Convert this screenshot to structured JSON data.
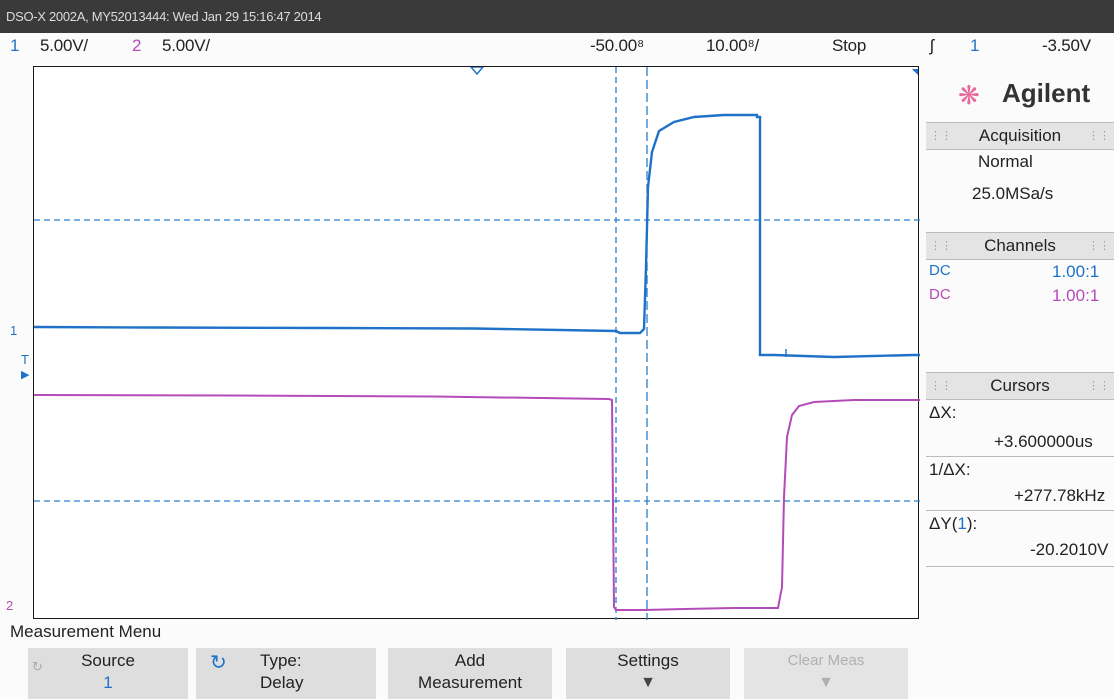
{
  "title_bar": "DSO-X 2002A, MY52013444: Wed Jan 29 15:16:47 2014",
  "header": {
    "ch1_num": "1",
    "ch1_scale": "5.00V/",
    "ch2_num": "2",
    "ch2_scale": "5.00V/",
    "time_offset": "-50.00⁸",
    "time_scale": "10.00⁸/",
    "run_state": "Stop",
    "trigger_icon": "ʃ",
    "trigger_source": "1",
    "trigger_level": "-3.50V"
  },
  "brand": {
    "logo": "Agilent",
    "icon": "agilent-spark-icon"
  },
  "acquisition": {
    "heading": "Acquisition",
    "mode": "Normal",
    "rate": "25.0MSa/s"
  },
  "channels": {
    "heading": "Channels",
    "rows": [
      {
        "coupling": "DC",
        "probe": "1.00:1",
        "color": "#1f72c8"
      },
      {
        "coupling": "DC",
        "probe": "1.00:1",
        "color": "#b34bb8"
      }
    ]
  },
  "cursors": {
    "heading": "Cursors",
    "dx_label": "ΔX:",
    "dx_value": "+3.600000us",
    "inv_dx_label": "1/ΔX:",
    "inv_dx_value": "+277.78kHz",
    "dy_label_prefix": "ΔY(",
    "dy_channel": "1",
    "dy_label_suffix": "):",
    "dy_value": "-20.2010V"
  },
  "left_markers": {
    "ch1": "1",
    "trigger": "T",
    "ch2": "2"
  },
  "measurement_menu": "Measurement Menu",
  "softkeys": {
    "source_label": "Source",
    "source_value": "1",
    "type_label": "Type:",
    "type_value": "Delay",
    "add_label": "Add",
    "add_value": "Measurement",
    "settings_label": "Settings",
    "clear_label": "Clear Meas"
  },
  "colors": {
    "ch1": "#1f72c8",
    "ch2": "#b34bb8",
    "cursor": "#1f72c8"
  }
}
